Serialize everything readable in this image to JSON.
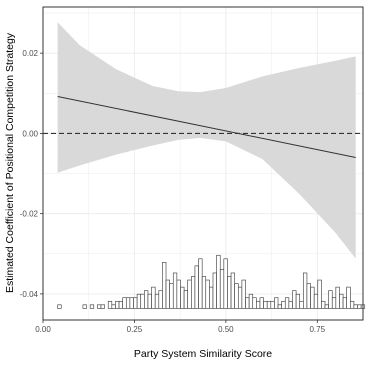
{
  "chart_data": {
    "type": "line",
    "xlabel": "Party System Similarity Score",
    "ylabel": "Estimated Coefficient of Positional Competition Strategy",
    "xlim": [
      0.0,
      0.875
    ],
    "ylim": [
      -0.0465,
      0.0315
    ],
    "x_ticks": [
      0.0,
      0.25,
      0.5,
      0.75
    ],
    "x_tick_labels": [
      "0.00",
      "0.25",
      "0.50",
      "0.75"
    ],
    "y_ticks": [
      0.02,
      0.0,
      -0.02,
      -0.04
    ],
    "y_tick_labels": [
      "0.02",
      "0.00",
      "-0.02",
      "-0.04"
    ],
    "grid": true,
    "reference_line": {
      "y": 0.0,
      "style": "dashed"
    },
    "estimate": {
      "x": [
        0.04,
        0.855
      ],
      "y": [
        0.0092,
        -0.006
      ]
    },
    "confidence_band": {
      "x": [
        0.04,
        0.1,
        0.2,
        0.3,
        0.37,
        0.43,
        0.5,
        0.6,
        0.7,
        0.8,
        0.855
      ],
      "upper": [
        0.0277,
        0.022,
        0.016,
        0.0118,
        0.0105,
        0.0103,
        0.0113,
        0.0142,
        0.0163,
        0.0181,
        0.0192
      ],
      "lower": [
        -0.0098,
        -0.008,
        -0.0053,
        -0.003,
        -0.0016,
        -0.0011,
        -0.002,
        -0.0064,
        -0.015,
        -0.0248,
        -0.0312
      ]
    },
    "histogram": {
      "bin_width": 0.00988,
      "x_start": 0.04,
      "counts": [
        1,
        0,
        0,
        0,
        0,
        0,
        0,
        1,
        0,
        1,
        0,
        1,
        1,
        0,
        2,
        1,
        2,
        2,
        3,
        3,
        3,
        3,
        4,
        4,
        5,
        4,
        6,
        4,
        5,
        13,
        8,
        7,
        10,
        8,
        6,
        5,
        8,
        9,
        12,
        14,
        9,
        8,
        6,
        10,
        15,
        11,
        14,
        9,
        10,
        7,
        6,
        8,
        3,
        4,
        3,
        2,
        3,
        2,
        2,
        2,
        3,
        1,
        2,
        3,
        2,
        5,
        4,
        2,
        10,
        7,
        6,
        4,
        8,
        2,
        1,
        5,
        3,
        6,
        4,
        3,
        6,
        2,
        1,
        1,
        1
      ],
      "colors": {
        "fill": "#ffffff",
        "stroke": "#333333"
      }
    },
    "colors": {
      "band": "#d9d9d9",
      "line": "#333333",
      "grid": "#ebebeb",
      "axis": "#333333"
    }
  }
}
